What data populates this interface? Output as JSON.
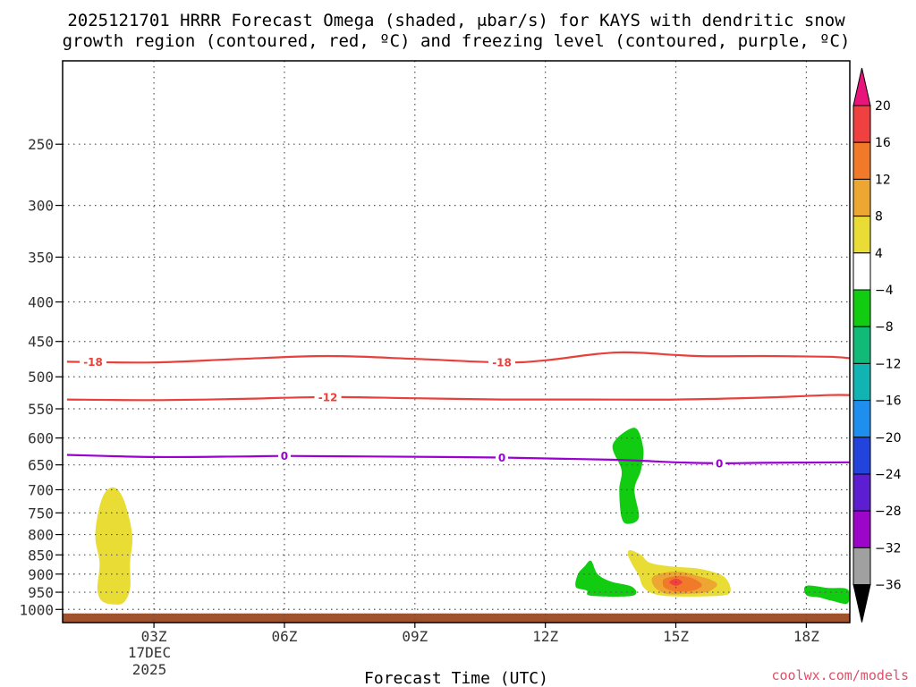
{
  "title_line1": "2025121701 HRRR Forecast Omega (shaded, μbar/s) for KAYS with dendritic snow",
  "title_line2": "growth region (contoured, red, ºC) and freezing level (contoured, purple, ºC)",
  "xlabel": "Forecast Time (UTC)",
  "credit": "coolwx.com/models",
  "date_label": {
    "day": "17DEC",
    "year": "2025"
  },
  "colors": {
    "frame": "#000000",
    "grid": "#555555",
    "terrain": "#a0522d",
    "dgz": "#e8403a",
    "freezing": "#9b00d3"
  },
  "chart_data": {
    "type": "time-height cross section (filled contour + line contours)",
    "x_axis": {
      "label": "Forecast Time (UTC)",
      "range_hours_utc": [
        0.9,
        19.0
      ],
      "ticks": [
        {
          "hour": 3,
          "label": "03Z"
        },
        {
          "hour": 6,
          "label": "06Z"
        },
        {
          "hour": 9,
          "label": "09Z"
        },
        {
          "hour": 12,
          "label": "12Z"
        },
        {
          "hour": 15,
          "label": "15Z"
        },
        {
          "hour": 18,
          "label": "18Z"
        }
      ]
    },
    "y_axis": {
      "unit": "hPa",
      "scale": "log-pressure, inverted",
      "range_hpa": [
        1040,
        195
      ],
      "ticks": [
        250,
        300,
        350,
        400,
        450,
        500,
        550,
        600,
        650,
        700,
        750,
        800,
        850,
        900,
        950,
        1000
      ]
    },
    "grid": true,
    "colorbar": {
      "levels": [
        20,
        16,
        12,
        8,
        4,
        -4,
        -8,
        -12,
        -16,
        -20,
        -24,
        -28,
        -32,
        -36
      ],
      "bins": [
        {
          "from": 20,
          "to": 99,
          "color": "#e8157a"
        },
        {
          "from": 16,
          "to": 20,
          "color": "#f04040"
        },
        {
          "from": 12,
          "to": 16,
          "color": "#f07a2a"
        },
        {
          "from": 8,
          "to": 12,
          "color": "#eda632"
        },
        {
          "from": 4,
          "to": 8,
          "color": "#e8dc35"
        },
        {
          "from": -4,
          "to": 4,
          "color": "#ffffff"
        },
        {
          "from": -8,
          "to": -4,
          "color": "#11cc11"
        },
        {
          "from": -12,
          "to": -8,
          "color": "#11bb77"
        },
        {
          "from": -16,
          "to": -12,
          "color": "#11b3b3"
        },
        {
          "from": -20,
          "to": -16,
          "color": "#1f8fef"
        },
        {
          "from": -24,
          "to": -20,
          "color": "#2244dd"
        },
        {
          "from": -28,
          "to": -24,
          "color": "#5c1ed0"
        },
        {
          "from": -32,
          "to": -28,
          "color": "#9b06c8"
        },
        {
          "from": -36,
          "to": -32,
          "color": "#a0a0a0"
        },
        {
          "from": -99,
          "to": -36,
          "color": "#000000"
        }
      ]
    },
    "contours": [
      {
        "name": "-18",
        "color": "#e8403a",
        "points": [
          [
            1.0,
            478
          ],
          [
            3.0,
            479
          ],
          [
            5.0,
            474
          ],
          [
            7.0,
            470
          ],
          [
            9.0,
            474
          ],
          [
            11.0,
            479
          ],
          [
            12.0,
            476
          ],
          [
            13.2,
            467
          ],
          [
            14.0,
            465
          ],
          [
            15.5,
            470
          ],
          [
            17.0,
            470
          ],
          [
            18.5,
            471
          ],
          [
            19.0,
            473
          ]
        ],
        "labels": [
          {
            "x": 1.6,
            "text": "-18"
          },
          {
            "x": 11.0,
            "text": "-18"
          }
        ]
      },
      {
        "name": "-12",
        "color": "#e8403a",
        "points": [
          [
            1.0,
            535
          ],
          [
            3.0,
            536
          ],
          [
            5.0,
            534
          ],
          [
            7.0,
            531
          ],
          [
            9.0,
            533
          ],
          [
            11.0,
            535
          ],
          [
            13.0,
            535
          ],
          [
            15.0,
            535
          ],
          [
            17.0,
            532
          ],
          [
            18.5,
            528
          ],
          [
            19.0,
            528
          ]
        ],
        "labels": [
          {
            "x": 7.0,
            "text": "-12"
          }
        ]
      },
      {
        "name": "0",
        "color": "#9b00d3",
        "points": [
          [
            1.0,
            631
          ],
          [
            3.0,
            635
          ],
          [
            5.0,
            634
          ],
          [
            6.0,
            633
          ],
          [
            8.0,
            634
          ],
          [
            11.0,
            636
          ],
          [
            13.5,
            640
          ],
          [
            15.0,
            645
          ],
          [
            16.0,
            647
          ],
          [
            17.0,
            646
          ],
          [
            19.0,
            645
          ]
        ],
        "labels": [
          {
            "x": 6.0,
            "text": "0"
          },
          {
            "x": 11.0,
            "text": "0"
          },
          {
            "x": 16.0,
            "text": "0"
          }
        ]
      }
    ],
    "shaded_regions": [
      {
        "value_bin": [
          4,
          8
        ],
        "color": "#e8dc35",
        "outline": [
          [
            2.05,
            695
          ],
          [
            2.3,
            720
          ],
          [
            2.5,
            800
          ],
          [
            2.45,
            870
          ],
          [
            2.45,
            940
          ],
          [
            2.3,
            980
          ],
          [
            2.05,
            985
          ],
          [
            1.8,
            975
          ],
          [
            1.7,
            940
          ],
          [
            1.75,
            870
          ],
          [
            1.65,
            800
          ],
          [
            1.8,
            720
          ]
        ]
      },
      {
        "value_bin": [
          -8,
          -4
        ],
        "color": "#11cc11",
        "outline": [
          [
            14.05,
            582
          ],
          [
            14.25,
            618
          ],
          [
            14.2,
            660
          ],
          [
            14.05,
            700
          ],
          [
            14.15,
            760
          ],
          [
            13.9,
            775
          ],
          [
            13.75,
            760
          ],
          [
            13.7,
            700
          ],
          [
            13.75,
            660
          ],
          [
            13.55,
            612
          ]
        ]
      },
      {
        "value_bin": [
          -8,
          -4
        ],
        "color": "#11cc11",
        "outline": [
          [
            13.05,
            865
          ],
          [
            13.2,
            900
          ],
          [
            13.5,
            920
          ],
          [
            14.0,
            935
          ],
          [
            14.0,
            960
          ],
          [
            13.05,
            960
          ],
          [
            12.95,
            945
          ],
          [
            12.7,
            935
          ],
          [
            12.75,
            900
          ],
          [
            12.9,
            880
          ]
        ]
      },
      {
        "value_bin": [
          -8,
          -4
        ],
        "color": "#11cc11",
        "outline": [
          [
            18.0,
            932
          ],
          [
            18.5,
            938
          ],
          [
            18.95,
            942
          ],
          [
            18.95,
            982
          ],
          [
            18.6,
            975
          ],
          [
            18.3,
            965
          ],
          [
            18.0,
            958
          ]
        ]
      },
      {
        "value_bin": [
          4,
          8
        ],
        "color": "#e8dc35",
        "outline": [
          [
            13.95,
            838
          ],
          [
            14.2,
            850
          ],
          [
            14.4,
            870
          ],
          [
            14.9,
            880
          ],
          [
            15.5,
            885
          ],
          [
            16.0,
            900
          ],
          [
            16.2,
            920
          ],
          [
            16.25,
            950
          ],
          [
            16.0,
            960
          ],
          [
            15.0,
            962
          ],
          [
            14.5,
            955
          ],
          [
            14.25,
            935
          ],
          [
            14.15,
            905
          ],
          [
            14.0,
            875
          ],
          [
            13.9,
            850
          ]
        ]
      },
      {
        "value_bin": [
          8,
          12
        ],
        "color": "#eda632",
        "outline": [
          [
            14.5,
            905
          ],
          [
            14.8,
            895
          ],
          [
            15.2,
            895
          ],
          [
            15.5,
            905
          ],
          [
            15.8,
            915
          ],
          [
            15.95,
            930
          ],
          [
            15.7,
            950
          ],
          [
            15.2,
            955
          ],
          [
            14.8,
            955
          ],
          [
            14.55,
            940
          ],
          [
            14.45,
            920
          ]
        ]
      },
      {
        "value_bin": [
          12,
          16
        ],
        "color": "#f07a2a",
        "outline": [
          [
            14.75,
            912
          ],
          [
            15.1,
            905
          ],
          [
            15.4,
            912
          ],
          [
            15.6,
            930
          ],
          [
            15.4,
            945
          ],
          [
            15.0,
            948
          ],
          [
            14.75,
            938
          ],
          [
            14.7,
            925
          ]
        ]
      },
      {
        "value_bin": [
          16,
          20
        ],
        "color": "#f04040",
        "outline": [
          [
            15.0,
            912
          ],
          [
            15.15,
            922
          ],
          [
            15.0,
            932
          ],
          [
            14.85,
            922
          ]
        ]
      }
    ],
    "terrain": {
      "surface_hpa": 1012,
      "color": "#a0522d"
    }
  }
}
